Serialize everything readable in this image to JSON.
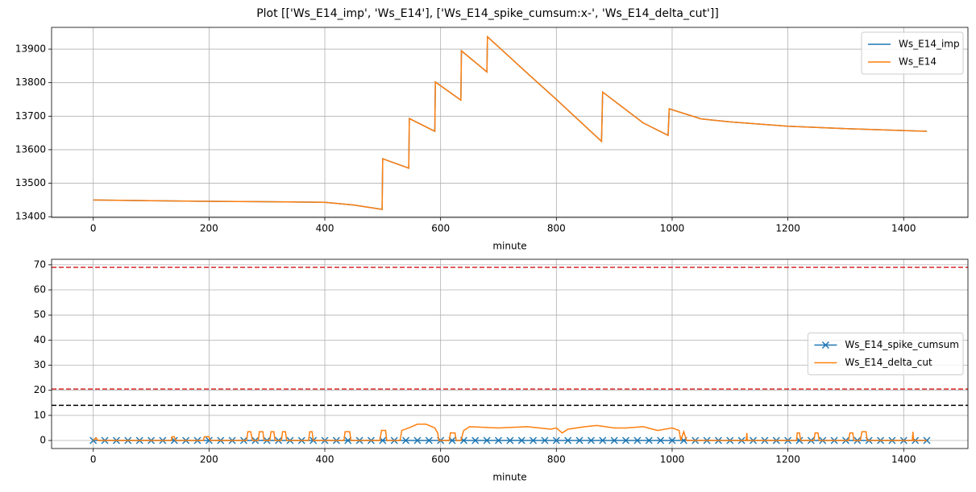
{
  "figure_title": "Plot [['Ws_E14_imp', 'Ws_E14'], ['Ws_E14_spike_cumsum:x-', 'Ws_E14_delta_cut']]",
  "chart_data": [
    {
      "type": "line",
      "xlabel": "minute",
      "grid": true,
      "legend": "upper right",
      "xlim": [
        -72,
        1511
      ],
      "xticks": [
        0,
        200,
        400,
        600,
        800,
        1000,
        1200,
        1400
      ],
      "ylim": [
        13398,
        13965
      ],
      "yticks": [
        13400,
        13500,
        13600,
        13700,
        13800,
        13900
      ],
      "x": [
        0,
        100,
        200,
        300,
        400,
        450,
        499,
        500,
        545,
        546,
        590,
        591,
        635,
        636,
        680,
        681,
        750,
        800,
        878,
        880,
        950,
        993,
        995,
        1050,
        1100,
        1200,
        1300,
        1440
      ],
      "series": [
        {
          "name": "Ws_E14_imp",
          "color": "#1f77b4",
          "values": [
            13450,
            13448,
            13446,
            13445,
            13443,
            13435,
            13422,
            13573,
            13545,
            13693,
            13655,
            13802,
            13748,
            13895,
            13832,
            13937,
            13828,
            13750,
            13625,
            13772,
            13680,
            13643,
            13722,
            13692,
            13683,
            13670,
            13663,
            13655
          ]
        },
        {
          "name": "Ws_E14",
          "color": "#ff7f0e",
          "values": [
            13450,
            13448,
            13446,
            13445,
            13443,
            13435,
            13422,
            13573,
            13545,
            13693,
            13655,
            13802,
            13748,
            13895,
            13832,
            13937,
            13828,
            13750,
            13625,
            13772,
            13680,
            13643,
            13722,
            13692,
            13683,
            13670,
            13663,
            13655
          ]
        }
      ]
    },
    {
      "type": "line",
      "xlabel": "minute",
      "grid": true,
      "legend": "center right",
      "xlim": [
        -72,
        1511
      ],
      "xticks": [
        0,
        200,
        400,
        600,
        800,
        1000,
        1200,
        1400
      ],
      "ylim": [
        -3.2,
        72.2
      ],
      "yticks": [
        0,
        10,
        20,
        30,
        40,
        50,
        60,
        70
      ],
      "hlines": [
        {
          "value": 69,
          "color": "#d62728",
          "style": "dashed"
        },
        {
          "value": 20.5,
          "color": "#d62728",
          "style": "dashed"
        },
        {
          "value": 14,
          "color": "#000000",
          "style": "dashed"
        }
      ],
      "series": [
        {
          "name": "Ws_E14_spike_cumsum",
          "color": "#1f77b4",
          "marker": "x",
          "x": [
            0,
            20,
            40,
            60,
            80,
            100,
            120,
            140,
            160,
            180,
            200,
            220,
            240,
            260,
            280,
            300,
            320,
            340,
            360,
            380,
            400,
            420,
            440,
            460,
            480,
            500,
            520,
            540,
            560,
            580,
            600,
            620,
            640,
            660,
            680,
            700,
            720,
            740,
            760,
            780,
            800,
            820,
            840,
            860,
            880,
            900,
            920,
            940,
            960,
            980,
            1000,
            1020,
            1040,
            1060,
            1080,
            1100,
            1120,
            1140,
            1160,
            1180,
            1200,
            1220,
            1240,
            1260,
            1280,
            1300,
            1320,
            1340,
            1360,
            1380,
            1400,
            1420,
            1440
          ],
          "values": [
            0,
            0,
            0,
            0,
            0,
            0,
            0,
            0,
            0,
            0,
            0,
            0,
            0,
            0,
            0,
            0,
            0,
            0,
            0,
            0,
            0,
            0,
            0,
            0,
            0,
            0,
            0,
            0,
            0,
            0,
            0,
            0,
            0,
            0,
            0,
            0,
            0,
            0,
            0,
            0,
            0,
            0,
            0,
            0,
            0,
            0,
            0,
            0,
            0,
            0,
            0,
            0,
            0,
            0,
            0,
            0,
            0,
            0,
            0,
            0,
            0,
            0,
            0,
            0,
            0,
            0,
            0,
            0,
            0,
            0,
            0,
            0,
            0
          ]
        },
        {
          "name": "Ws_E14_delta_cut",
          "color": "#ff7f0e",
          "x": [
            0,
            5,
            8,
            135,
            136,
            140,
            142,
            190,
            192,
            200,
            202,
            265,
            267,
            272,
            275,
            285,
            287,
            293,
            295,
            305,
            307,
            312,
            314,
            325,
            327,
            332,
            334,
            372,
            374,
            378,
            380,
            433,
            435,
            443,
            445,
            495,
            498,
            505,
            507,
            530,
            533,
            545,
            560,
            575,
            590,
            595,
            597,
            615,
            617,
            625,
            627,
            635,
            640,
            650,
            700,
            750,
            790,
            800,
            810,
            820,
            850,
            870,
            900,
            920,
            950,
            975,
            1000,
            1012,
            1015,
            1020,
            1025,
            1128,
            1129,
            1130,
            1215,
            1216,
            1220,
            1222,
            1245,
            1247,
            1252,
            1254,
            1305,
            1307,
            1312,
            1314,
            1325,
            1328,
            1335,
            1337,
            1415,
            1416,
            1417,
            1440
          ],
          "values": [
            0,
            1,
            0,
            0,
            1.5,
            1.5,
            0,
            0,
            1.5,
            1.5,
            0,
            0,
            3.5,
            3.5,
            0,
            0,
            3.5,
            3.5,
            0,
            0,
            3.5,
            3.5,
            0,
            0,
            3.5,
            3.5,
            0,
            0,
            3.5,
            3.5,
            0,
            0,
            3.5,
            3.5,
            0,
            0,
            4,
            4,
            0,
            0,
            4,
            5,
            6.5,
            6.5,
            5,
            3,
            0,
            0,
            3,
            3,
            0,
            0,
            4,
            5.5,
            5,
            5.5,
            4.5,
            5,
            3,
            4.5,
            5.5,
            6,
            5,
            5,
            5.5,
            4,
            5,
            4,
            0,
            3.5,
            0,
            0,
            3,
            0,
            0,
            3,
            3,
            0,
            0,
            3,
            3,
            0,
            0,
            3,
            3,
            0,
            0,
            3.5,
            3.5,
            0,
            0,
            3.5,
            0,
            0
          ]
        }
      ]
    }
  ]
}
